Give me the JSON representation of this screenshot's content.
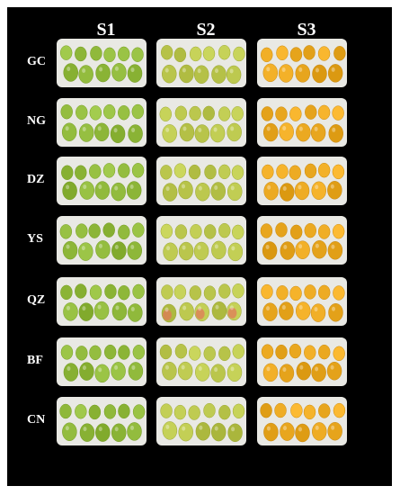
{
  "columns": [
    "S1",
    "S2",
    "S3"
  ],
  "rows": [
    "GC",
    "NG",
    "DZ",
    "YS",
    "QZ",
    "BF",
    "CN"
  ],
  "colors": {
    "background": "#000000",
    "tray": "#e9e9e4",
    "S1_fruit": "#8fb83a",
    "S2_fruit": "#b8c44a",
    "S3_fruit": "#e8a61e",
    "blush": "#e07a5a"
  }
}
